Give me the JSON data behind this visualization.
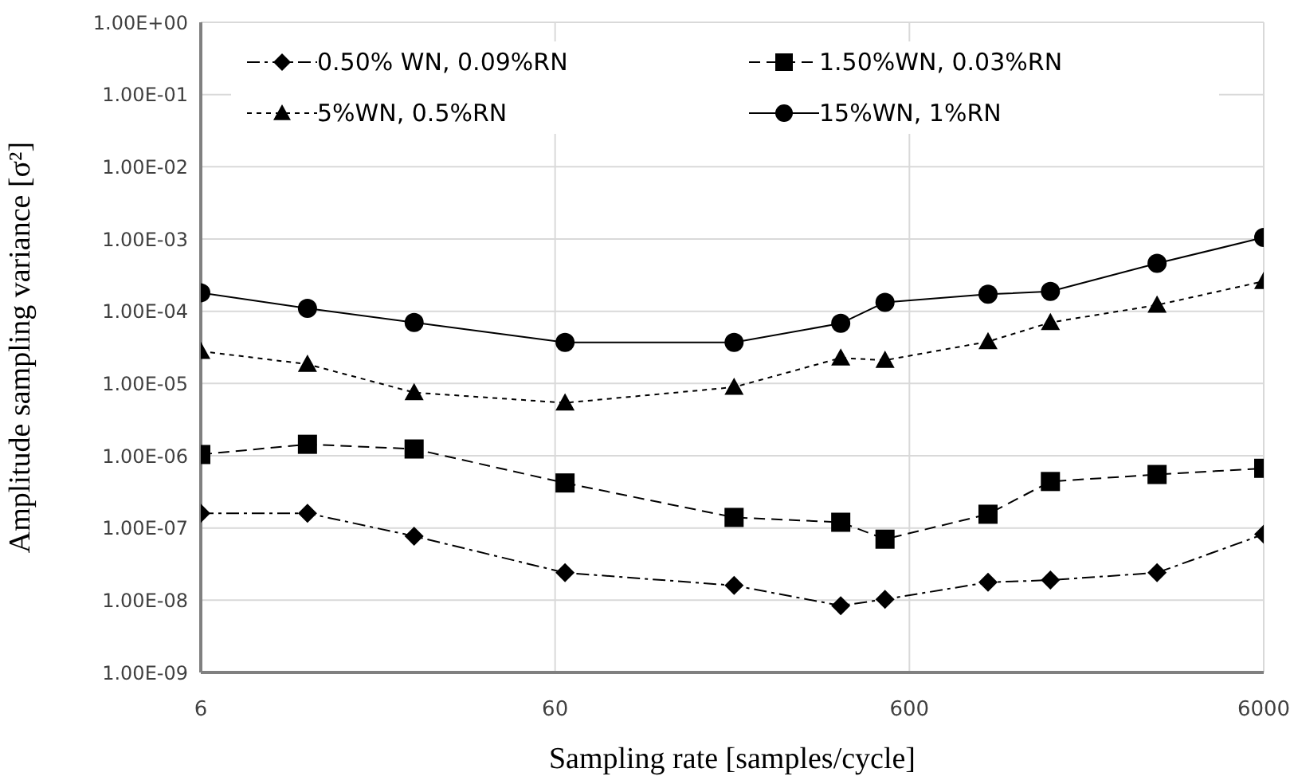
{
  "chart_data": {
    "type": "line",
    "xlabel": "Sampling rate [samples/cycle]",
    "ylabel": "Amplitude sampling variance [σ²]",
    "x": [
      6,
      12,
      24,
      64,
      192,
      384,
      512,
      1000,
      1500,
      3000,
      6000
    ],
    "series": [
      {
        "name": "0.50% WN, 0.09%RN",
        "color": "#000000",
        "marker": "diamond",
        "line_style": "dashdot",
        "values": [
          1.6e-07,
          1.6e-07,
          7.7e-08,
          2.4e-08,
          1.6e-08,
          8.4e-09,
          1.03e-08,
          1.77e-08,
          1.9e-08,
          2.4e-08,
          8.2e-08
        ]
      },
      {
        "name": "1.50%WN, 0.03%RN",
        "color": "#000000",
        "marker": "square",
        "line_style": "dashed",
        "values": [
          1.04e-06,
          1.44e-06,
          1.24e-06,
          4.2e-07,
          1.4e-07,
          1.2e-07,
          7e-08,
          1.55e-07,
          4.4e-07,
          5.5e-07,
          6.7e-07
        ]
      },
      {
        "name": "5%WN, 0.5%RN",
        "color": "#000000",
        "marker": "triangle",
        "line_style": "dotted",
        "values": [
          2.8e-05,
          1.85e-05,
          7.5e-06,
          5.4e-06,
          8.9e-06,
          2.26e-05,
          2.1e-05,
          3.8e-05,
          7e-05,
          0.000122,
          0.00026
        ]
      },
      {
        "name": "15%WN, 1%RN",
        "color": "#000000",
        "marker": "circle",
        "line_style": "solid",
        "values": [
          0.00018,
          0.00011,
          7e-05,
          3.7e-05,
          3.7e-05,
          6.8e-05,
          0.000133,
          0.000172,
          0.000188,
          0.00046,
          0.00105
        ]
      }
    ],
    "log": "xy",
    "xlim": [
      6,
      6000
    ],
    "xticks": [
      6,
      60,
      600,
      6000
    ],
    "ylim": [
      1e-09,
      1
    ],
    "yticks": [
      {
        "value": 1e-09,
        "label": "1.00E-09"
      },
      {
        "value": 1e-08,
        "label": "1.00E-08"
      },
      {
        "value": 1e-07,
        "label": "1.00E-07"
      },
      {
        "value": 1e-06,
        "label": "1.00E-06"
      },
      {
        "value": 1e-05,
        "label": "1.00E-05"
      },
      {
        "value": 0.0001,
        "label": "1.00E-04"
      },
      {
        "value": 0.001,
        "label": "1.00E-03"
      },
      {
        "value": 0.01,
        "label": "1.00E-02"
      },
      {
        "value": 0.1,
        "label": "1.00E-01"
      },
      {
        "value": 1,
        "label": "1.00E+00"
      }
    ],
    "grid": true,
    "legend": "top"
  }
}
